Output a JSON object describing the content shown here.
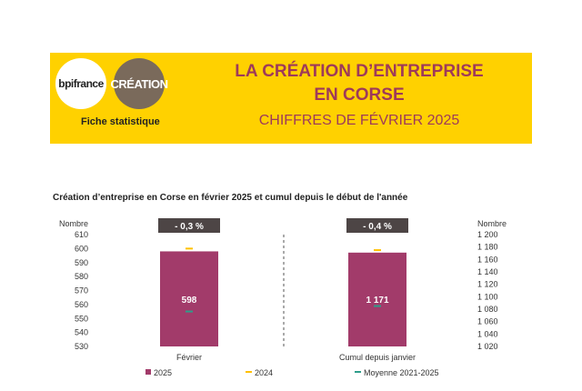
{
  "header": {
    "logo_bpi": "bpifrance",
    "logo_creation": "CRÉATION",
    "fiche": "Fiche statistique",
    "title_line1": "LA CRÉATION D’ENTREPRISE",
    "title_line2": "EN CORSE",
    "subtitle": "CHIFFRES DE FÉVRIER 2025"
  },
  "colors": {
    "banner": "#ffd100",
    "title": "#9e3a5a",
    "bar_2025": "#a23b6a",
    "marker_2024": "#ffc000",
    "marker_avg": "#2e9d8a",
    "badge": "#4d4545"
  },
  "chart_data": {
    "type": "bar",
    "title": "Création d’entreprise en Corse en février 2025 et cumul depuis le début de l'année",
    "left_axis": {
      "label": "Nombre",
      "min": 530,
      "max": 610,
      "step": 10,
      "ticks": [
        "610",
        "600",
        "590",
        "580",
        "570",
        "560",
        "550",
        "540",
        "530"
      ]
    },
    "right_axis": {
      "label": "Nombre",
      "min": 1020,
      "max": 1200,
      "step": 20,
      "ticks": [
        "1 200",
        "1 180",
        "1 160",
        "1 140",
        "1 120",
        "1 100",
        "1 080",
        "1 060",
        "1 040",
        "1 020"
      ]
    },
    "categories": [
      "Février",
      "Cumul depuis janvier"
    ],
    "series": [
      {
        "name": "2025",
        "values": [
          598,
          1171
        ]
      },
      {
        "name": "2024",
        "values": [
          600,
          1175
        ]
      },
      {
        "name": "Moyenne 2021-2025",
        "values": [
          555,
          1085
        ]
      }
    ],
    "bar_labels": [
      "598",
      "1 171"
    ],
    "badges": [
      "- 0,3 %",
      "- 0,4 %"
    ],
    "legend": [
      "2025",
      "2024",
      "Moyenne 2021-2025"
    ],
    "legend_position": "bottom"
  }
}
